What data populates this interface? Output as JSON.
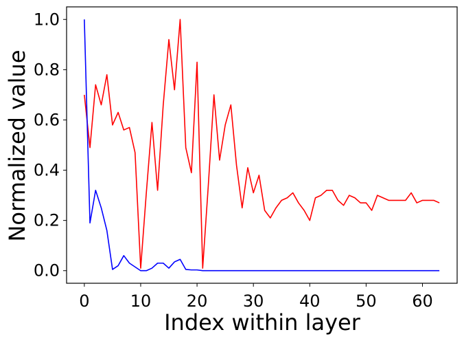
{
  "chart_data": {
    "type": "line",
    "title": "",
    "xlabel": "Index within layer",
    "ylabel": "Normalized value",
    "xlim": [
      -3.15,
      66.15
    ],
    "ylim": [
      -0.05,
      1.05
    ],
    "xticks": [
      0,
      10,
      20,
      30,
      40,
      50,
      60
    ],
    "xtick_labels": [
      "0",
      "10",
      "20",
      "30",
      "40",
      "50",
      "60"
    ],
    "yticks": [
      0.0,
      0.2,
      0.4,
      0.6,
      0.8,
      1.0
    ],
    "ytick_labels": [
      "0.0",
      "0.2",
      "0.4",
      "0.6",
      "0.8",
      "1.0"
    ],
    "grid": false,
    "legend": false,
    "x": [
      0,
      1,
      2,
      3,
      4,
      5,
      6,
      7,
      8,
      9,
      10,
      11,
      12,
      13,
      14,
      15,
      16,
      17,
      18,
      19,
      20,
      21,
      22,
      23,
      24,
      25,
      26,
      27,
      28,
      29,
      30,
      31,
      32,
      33,
      34,
      35,
      36,
      37,
      38,
      39,
      40,
      41,
      42,
      43,
      44,
      45,
      46,
      47,
      48,
      49,
      50,
      51,
      52,
      53,
      54,
      55,
      56,
      57,
      58,
      59,
      60,
      61,
      62,
      63
    ],
    "series": [
      {
        "color": "#ff0000",
        "values": [
          0.7,
          0.49,
          0.74,
          0.66,
          0.78,
          0.58,
          0.63,
          0.56,
          0.57,
          0.47,
          0.01,
          0.31,
          0.59,
          0.32,
          0.66,
          0.92,
          0.72,
          1.0,
          0.49,
          0.39,
          0.83,
          0.01,
          0.34,
          0.7,
          0.44,
          0.58,
          0.66,
          0.42,
          0.25,
          0.41,
          0.31,
          0.38,
          0.24,
          0.21,
          0.25,
          0.28,
          0.29,
          0.31,
          0.27,
          0.24,
          0.2,
          0.29,
          0.3,
          0.32,
          0.32,
          0.28,
          0.26,
          0.3,
          0.29,
          0.27,
          0.27,
          0.24,
          0.3,
          0.29,
          0.28,
          0.28,
          0.28,
          0.28,
          0.31,
          0.27,
          0.28,
          0.28,
          0.28,
          0.27
        ]
      },
      {
        "color": "#0000ff",
        "values": [
          1.0,
          0.19,
          0.32,
          0.25,
          0.16,
          0.005,
          0.02,
          0.06,
          0.03,
          0.015,
          0.0,
          0.0,
          0.01,
          0.03,
          0.03,
          0.01,
          0.035,
          0.045,
          0.005,
          0.003,
          0.003,
          0.0,
          0.0,
          0.0,
          0.0,
          0.0,
          0.0,
          0.0,
          0.0,
          0.0,
          0.0,
          0.0,
          0.0,
          0.0,
          0.0,
          0.0,
          0.0,
          0.0,
          0.0,
          0.0,
          0.0,
          0.0,
          0.0,
          0.0,
          0.0,
          0.0,
          0.0,
          0.0,
          0.0,
          0.0,
          0.0,
          0.0,
          0.0,
          0.0,
          0.0,
          0.0,
          0.0,
          0.0,
          0.0,
          0.0,
          0.0,
          0.0,
          0.0,
          0.0
        ]
      }
    ]
  }
}
